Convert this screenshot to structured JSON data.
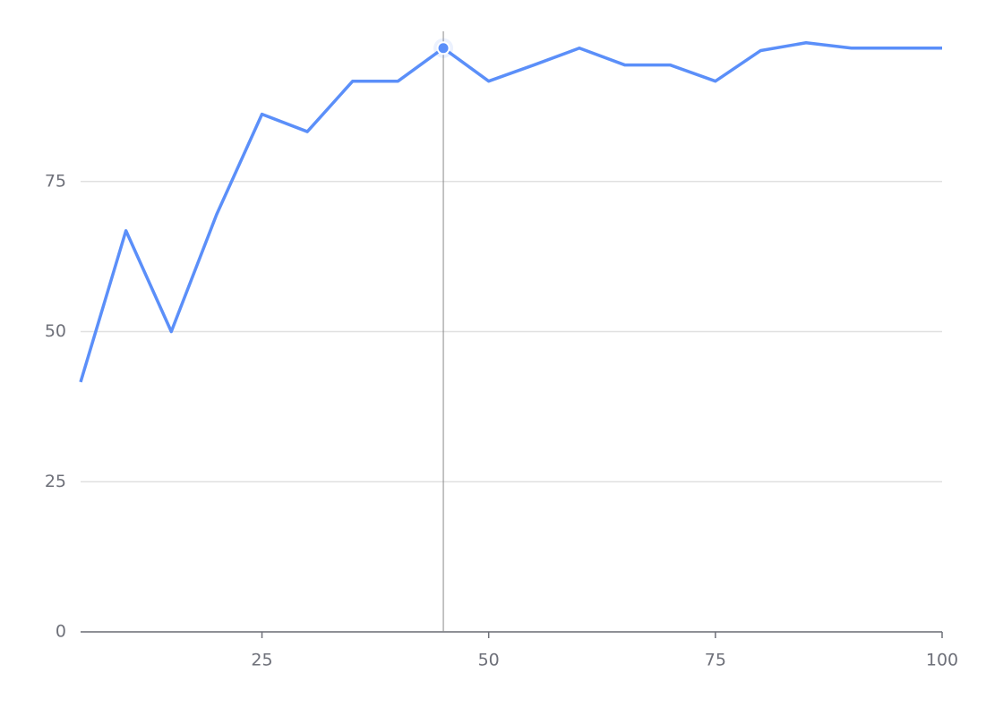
{
  "chart_data": {
    "type": "line",
    "x": [
      5,
      10,
      15,
      20,
      25,
      30,
      35,
      40,
      45,
      50,
      55,
      60,
      65,
      70,
      75,
      80,
      85,
      90,
      95,
      100
    ],
    "series": [
      {
        "color": "#5b8ff9",
        "values": [
          41.6,
          66.8,
          50,
          69.5,
          86.2,
          83.3,
          91.7,
          91.7,
          97.2,
          91.7,
          94.4,
          97.2,
          94.4,
          94.4,
          91.7,
          96.8,
          98.1,
          97.2,
          97.2,
          97.2
        ]
      }
    ],
    "xlim": [
      5,
      100
    ],
    "xticks": [
      25,
      50,
      75,
      100
    ],
    "ylim": [
      0,
      100
    ],
    "yticks": [
      0,
      25,
      50,
      75
    ],
    "grid": true,
    "crosshair_x": 45
  }
}
